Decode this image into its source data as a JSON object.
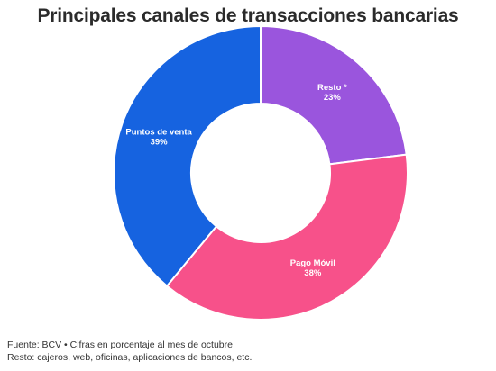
{
  "header": {
    "title": "Principales canales de transacciones bancarias"
  },
  "chart_data": {
    "type": "pie",
    "variant": "donut",
    "title": "Principales canales de transacciones bancarias",
    "categories": [
      "Resto *",
      "Pago Móvil",
      "Puntos de venta"
    ],
    "values": [
      23,
      38,
      39
    ],
    "value_labels": [
      "23%",
      "38%",
      "39%"
    ],
    "unit": "%",
    "colors": [
      "#9a55dd",
      "#f7518a",
      "#1663e0"
    ],
    "start_angle_deg": 0,
    "direction": "clockwise",
    "legend": "none"
  },
  "footer": {
    "source": "Fuente: BCV • Cifras en porcentaje al mes de octubre",
    "note": "Resto: cajeros, web, oficinas, aplicaciones de bancos, etc."
  }
}
